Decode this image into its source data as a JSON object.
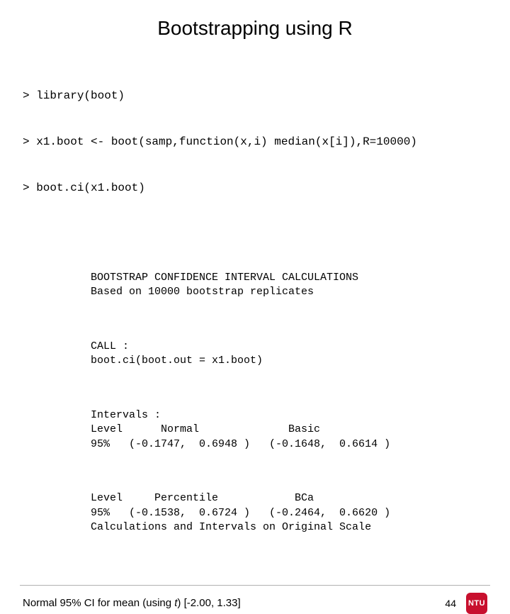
{
  "title": "Bootstrapping using R",
  "code_lines": [
    "> library(boot)",
    "> x1.boot <- boot(samp,function(x,i) median(x[i]),R=10000)",
    "> boot.ci(x1.boot)"
  ],
  "output_blocks": [
    "BOOTSTRAP CONFIDENCE INTERVAL CALCULATIONS\nBased on 10000 bootstrap replicates",
    "CALL :\nboot.ci(boot.out = x1.boot)",
    "Intervals :\nLevel      Normal              Basic\n95%   (-0.1747,  0.6948 )   (-0.1648,  0.6614 )",
    "Level     Percentile            BCa\n95%   (-0.1538,  0.6724 )   (-0.2464,  0.6620 )\nCalculations and Intervals on Original Scale"
  ],
  "footnote_prefix": "Normal 95% CI for mean (using ",
  "footnote_italic": "t",
  "footnote_suffix": ") [-2.00, 1.33]",
  "page_number": "44",
  "logo_text": "NTU",
  "colors": {
    "background": "#ffffff",
    "text": "#000000",
    "divider": "#b0b0b0",
    "logo_bg": "#c8102e",
    "logo_text": "#ffffff"
  },
  "fonts": {
    "title_family": "Arial",
    "title_size_pt": 28,
    "code_family": "Courier New",
    "code_input_size_pt": 16,
    "code_output_size_pt": 15,
    "footnote_size_pt": 15,
    "pagenum_size_pt": 14
  }
}
